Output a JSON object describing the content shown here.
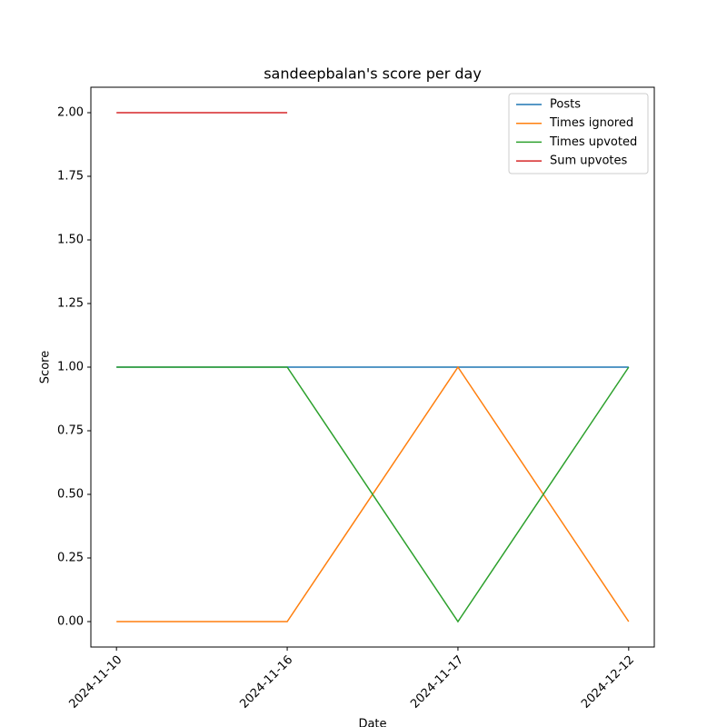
{
  "chart_data": {
    "type": "line",
    "title": "sandeepbalan's score per day",
    "xlabel": "Date",
    "ylabel": "Score",
    "categories": [
      "2024-11-10",
      "2024-11-16",
      "2024-11-17",
      "2024-12-12"
    ],
    "series": [
      {
        "name": "Posts",
        "color": "#1f77b4",
        "values": [
          1,
          1,
          1,
          1
        ]
      },
      {
        "name": "Times ignored",
        "color": "#ff7f0e",
        "values": [
          0,
          0,
          1,
          0
        ]
      },
      {
        "name": "Times upvoted",
        "color": "#2ca02c",
        "values": [
          1,
          1,
          0,
          1
        ]
      },
      {
        "name": "Sum upvotes",
        "color": "#d62728",
        "values": [
          2,
          2,
          null,
          null
        ]
      }
    ],
    "ylim": [
      -0.1,
      2.1
    ],
    "yticks": [
      {
        "value": 0,
        "label": "0.00"
      },
      {
        "value": 0.25,
        "label": "0.25"
      },
      {
        "value": 0.5,
        "label": "0.50"
      },
      {
        "value": 0.75,
        "label": "0.75"
      },
      {
        "value": 1,
        "label": "1.00"
      },
      {
        "value": 1.25,
        "label": "1.25"
      },
      {
        "value": 1.5,
        "label": "1.50"
      },
      {
        "value": 1.75,
        "label": "1.75"
      },
      {
        "value": 2,
        "label": "2.00"
      }
    ],
    "legend": "upper right",
    "grid": false
  }
}
